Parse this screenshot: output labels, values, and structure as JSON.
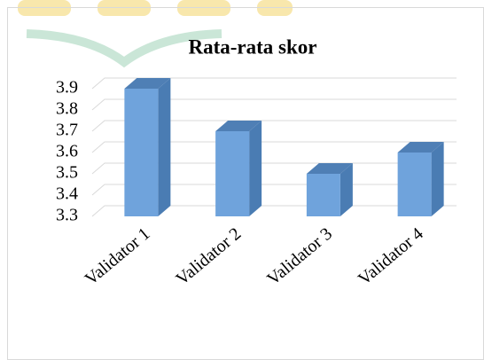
{
  "chart_data": {
    "type": "bar3d",
    "title": "Rata-rata skor",
    "categories": [
      "Validator 1",
      "Validator 2",
      "Validator 3",
      "Validator 4"
    ],
    "values": [
      3.9,
      3.7,
      3.5,
      3.6
    ],
    "color": "#6fa3dc",
    "ylim": [
      3.3,
      3.9
    ],
    "yticks": [
      3.3,
      3.4,
      3.5,
      3.6,
      3.7,
      3.8,
      3.9
    ],
    "grid": true
  }
}
